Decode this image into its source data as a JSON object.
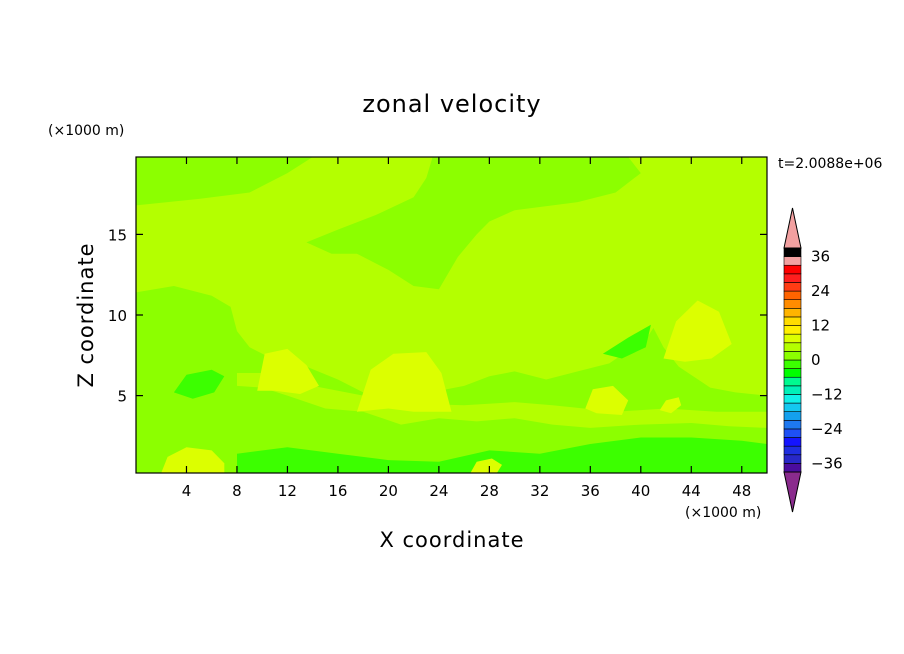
{
  "chart_data": {
    "type": "heatmap",
    "title": "zonal velocity",
    "xlabel": "X coordinate",
    "ylabel": "Z coordinate",
    "x_units": "(×1000 m)",
    "y_units": "(×1000 m)",
    "time_label": "t=2.0088e+06",
    "xlim": [
      0,
      50
    ],
    "ylim": [
      0.2,
      19.8
    ],
    "x_ticks": [
      4,
      8,
      12,
      16,
      20,
      24,
      28,
      32,
      36,
      40,
      44,
      48
    ],
    "y_ticks": [
      5,
      10,
      15
    ],
    "colorbar": {
      "min": -42,
      "max": 42,
      "step": 3,
      "tick_values": [
        36,
        24,
        12,
        0,
        -12,
        -24,
        -36
      ],
      "tick_labels": [
        "36",
        "24",
        "12",
        "0",
        "−12",
        "−24",
        "−36"
      ],
      "extend": "both",
      "colors": [
        "#8a2b8d",
        "#4b0c9e",
        "#2828c8",
        "#1f2ee0",
        "#1414ff",
        "#1e50f5",
        "#1e78f0",
        "#14a0ee",
        "#14c8f0",
        "#10f0e8",
        "#00f0b8",
        "#00fa90",
        "#00ff00",
        "#3cff00",
        "#8cff00",
        "#b4ff00",
        "#dcff00",
        "#fff000",
        "#ffdc00",
        "#ffb400",
        "#ff8c00",
        "#ff6400",
        "#ff3c14",
        "#ff1e1e",
        "#ff0000",
        "#f2a0a0"
      ]
    },
    "background_level": "0 to 3",
    "regions": [
      {
        "level": "-3 to 0",
        "description": "Upper band of slight negative zonal velocity",
        "points": [
          [
            0,
            18.0
          ],
          [
            0,
            16.8
          ],
          [
            5,
            17.2
          ],
          [
            9,
            17.6
          ],
          [
            12,
            18.8
          ],
          [
            14,
            19.8
          ],
          [
            0,
            19.8
          ]
        ]
      },
      {
        "level": "-3 to 0",
        "description": "Central-upper negative velocity tongue",
        "points": [
          [
            13.5,
            14.5
          ],
          [
            16,
            15.3
          ],
          [
            19,
            16.2
          ],
          [
            22,
            17.3
          ],
          [
            23,
            18.5
          ],
          [
            23.5,
            19.8
          ],
          [
            39,
            19.8
          ],
          [
            40,
            18.8
          ],
          [
            38,
            17.6
          ],
          [
            35,
            17.0
          ],
          [
            30,
            16.5
          ],
          [
            28,
            15.8
          ],
          [
            27,
            15.0
          ],
          [
            25.5,
            13.6
          ],
          [
            24,
            11.6
          ],
          [
            22,
            11.8
          ],
          [
            20,
            12.8
          ],
          [
            17.5,
            13.8
          ],
          [
            15.5,
            13.8
          ]
        ]
      },
      {
        "level": "-3 to 0",
        "description": "Lower layer of negative velocity",
        "points": [
          [
            0,
            11.4
          ],
          [
            3,
            11.8
          ],
          [
            6,
            11.2
          ],
          [
            7.5,
            10.5
          ],
          [
            8,
            9.0
          ],
          [
            9,
            8.0
          ],
          [
            11,
            7.2
          ],
          [
            13.5,
            6.8
          ],
          [
            16,
            6.0
          ],
          [
            18,
            5.2
          ],
          [
            21,
            5.0
          ],
          [
            24,
            5.3
          ],
          [
            26,
            5.6
          ],
          [
            28,
            6.2
          ],
          [
            30,
            6.5
          ],
          [
            32.5,
            6.0
          ],
          [
            35,
            6.5
          ],
          [
            37.5,
            7.0
          ],
          [
            39,
            7.8
          ],
          [
            40.5,
            8.6
          ],
          [
            41,
            9.2
          ],
          [
            41.8,
            8.0
          ],
          [
            43,
            6.8
          ],
          [
            45.5,
            5.5
          ],
          [
            47.5,
            5.2
          ],
          [
            50,
            5.0
          ],
          [
            50,
            0.2
          ],
          [
            0,
            0.2
          ]
        ]
      },
      {
        "level": "0 to 3",
        "description": "Patches of slight positive velocity embedded in the lower layer",
        "points": [
          [
            8,
            5.6
          ],
          [
            10,
            5.5
          ],
          [
            12,
            5.0
          ],
          [
            15,
            4.2
          ],
          [
            18,
            4.0
          ],
          [
            21,
            3.2
          ],
          [
            24,
            3.6
          ],
          [
            27,
            3.4
          ],
          [
            30,
            3.6
          ],
          [
            33,
            3.2
          ],
          [
            36,
            3.0
          ],
          [
            40,
            3.2
          ],
          [
            44,
            3.3
          ],
          [
            47,
            3.1
          ],
          [
            50,
            3.0
          ],
          [
            50,
            4.0
          ],
          [
            46,
            4.0
          ],
          [
            42,
            4.2
          ],
          [
            38,
            4.0
          ],
          [
            33,
            4.4
          ],
          [
            30,
            4.6
          ],
          [
            26,
            4.4
          ],
          [
            22,
            4.5
          ],
          [
            18,
            5.0
          ],
          [
            14,
            5.6
          ],
          [
            10,
            6.4
          ],
          [
            8,
            6.4
          ]
        ]
      },
      {
        "level": "-6 to -3",
        "description": "Small pocket near x=5 km, z=6 km",
        "points": [
          [
            3,
            5.2
          ],
          [
            4,
            6.3
          ],
          [
            6,
            6.6
          ],
          [
            7,
            6.2
          ],
          [
            6.2,
            5.2
          ],
          [
            4.5,
            4.8
          ]
        ]
      },
      {
        "level": "-6 to -3",
        "description": "Near-surface band of stronger negative velocity",
        "points": [
          [
            8,
            1.4
          ],
          [
            12,
            1.8
          ],
          [
            16,
            1.4
          ],
          [
            20,
            1.0
          ],
          [
            24,
            0.9
          ],
          [
            28,
            1.6
          ],
          [
            32,
            1.4
          ],
          [
            36,
            2.0
          ],
          [
            40,
            2.4
          ],
          [
            44,
            2.4
          ],
          [
            48,
            2.2
          ],
          [
            50,
            2.0
          ],
          [
            50,
            0.2
          ],
          [
            8,
            0.2
          ]
        ]
      },
      {
        "level": "-6 to -3",
        "description": "Small patch near x=40 km, z=8 km",
        "points": [
          [
            37,
            7.6
          ],
          [
            39,
            8.6
          ],
          [
            40.8,
            9.4
          ],
          [
            40.4,
            8.0
          ],
          [
            38.5,
            7.3
          ]
        ]
      },
      {
        "level": "3 to 6",
        "description": "Positive velocity bulge near x=11 km, z=6 km",
        "points": [
          [
            9.6,
            5.3
          ],
          [
            10.2,
            7.6
          ],
          [
            12,
            7.9
          ],
          [
            13.5,
            6.9
          ],
          [
            14.5,
            5.6
          ],
          [
            13,
            5.1
          ],
          [
            11,
            5.3
          ]
        ]
      },
      {
        "level": "3 to 6",
        "description": "Positive velocity bulge near x=21 km, z=5.5 km",
        "points": [
          [
            17.5,
            4.0
          ],
          [
            18.6,
            6.6
          ],
          [
            20.4,
            7.6
          ],
          [
            23,
            7.7
          ],
          [
            24.2,
            6.4
          ],
          [
            25,
            4.0
          ],
          [
            22,
            4.0
          ],
          [
            20,
            4.2
          ]
        ]
      },
      {
        "level": "3 to 6",
        "description": "Small positive patch near x=37 km, z=5 km",
        "points": [
          [
            35.6,
            4.2
          ],
          [
            36.2,
            5.4
          ],
          [
            37.8,
            5.6
          ],
          [
            39,
            4.7
          ],
          [
            38.5,
            3.8
          ],
          [
            36.5,
            3.9
          ]
        ]
      },
      {
        "level": "3 to 6",
        "description": "Positive velocity bulge near x=45 km, z=9 km",
        "points": [
          [
            41.8,
            7.3
          ],
          [
            42.8,
            9.6
          ],
          [
            44.5,
            10.9
          ],
          [
            46.2,
            10.2
          ],
          [
            47.2,
            8.2
          ],
          [
            45.6,
            7.3
          ],
          [
            43.5,
            7.1
          ]
        ]
      },
      {
        "level": "3 to 6",
        "description": "Small positive patch near x=42 km, z=4.5 km",
        "points": [
          [
            41.5,
            4.1
          ],
          [
            42,
            4.7
          ],
          [
            43,
            4.9
          ],
          [
            43.2,
            4.4
          ],
          [
            42.4,
            3.9
          ]
        ]
      },
      {
        "level": "3 to 6",
        "description": "Near-surface positive patch near x=5 km",
        "points": [
          [
            2,
            0.2
          ],
          [
            2.5,
            1.2
          ],
          [
            4,
            1.8
          ],
          [
            6,
            1.6
          ],
          [
            7,
            0.8
          ],
          [
            7,
            0.2
          ]
        ]
      },
      {
        "level": "3 to 6",
        "description": "Near-surface positive patch near x=28 km",
        "points": [
          [
            26.5,
            0.2
          ],
          [
            27,
            0.9
          ],
          [
            28.2,
            1.1
          ],
          [
            29,
            0.7
          ],
          [
            28.6,
            0.2
          ]
        ]
      }
    ]
  }
}
